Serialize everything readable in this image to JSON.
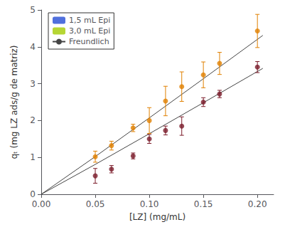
{
  "chart_data": {
    "type": "scatter",
    "xlabel": "[LZ] (mg/mL)",
    "ylabel": "qₜ (mg LZ ads/g de matriz)",
    "xlim": [
      0.0,
      0.215
    ],
    "ylim": [
      0.0,
      5.0
    ],
    "xticks": [
      {
        "value": 0.0,
        "label": "0.00"
      },
      {
        "value": 0.05,
        "label": "0.05"
      },
      {
        "value": 0.1,
        "label": "0.10"
      },
      {
        "value": 0.15,
        "label": "0.15"
      },
      {
        "value": 0.2,
        "label": "0.20"
      }
    ],
    "yticks": [
      0,
      1,
      2,
      3,
      4,
      5
    ],
    "grid": false,
    "legend": "upper left",
    "series": [
      {
        "name": "1,5 mL Epi",
        "type": "scatter",
        "marker": "circle",
        "color": "#7B1C2A",
        "x": [
          0.05,
          0.065,
          0.085,
          0.1,
          0.115,
          0.13,
          0.15,
          0.165,
          0.2
        ],
        "values": [
          0.5,
          0.68,
          1.04,
          1.5,
          1.73,
          1.85,
          2.5,
          2.72,
          3.45
        ],
        "yerr": [
          0.2,
          0.1,
          0.08,
          0.12,
          0.12,
          0.25,
          0.12,
          0.1,
          0.15
        ]
      },
      {
        "name": "3,0 mL Epi",
        "type": "scatter",
        "marker": "circle",
        "color": "#E08000",
        "x": [
          0.05,
          0.065,
          0.085,
          0.1,
          0.115,
          0.13,
          0.15,
          0.165,
          0.2
        ],
        "values": [
          1.02,
          1.32,
          1.8,
          2.0,
          2.53,
          2.92,
          3.24,
          3.55,
          4.43
        ],
        "yerr": [
          0.15,
          0.12,
          0.1,
          0.35,
          0.4,
          0.4,
          0.35,
          0.3,
          0.45
        ]
      },
      {
        "name": "Freundlich",
        "type": "line",
        "line_style": "solid",
        "color": "#444444",
        "x": [
          0.0,
          0.05,
          0.1,
          0.15,
          0.205
        ],
        "values": [
          0.0,
          0.81,
          1.643,
          2.484,
          3.416
        ]
      },
      {
        "name": "Freundlich",
        "type": "line",
        "line_style": "solid",
        "color": "#444444",
        "x": [
          0.0,
          0.05,
          0.1,
          0.15,
          0.205
        ],
        "values": [
          0.0,
          1.022,
          2.072,
          3.134,
          4.31
        ]
      }
    ]
  }
}
